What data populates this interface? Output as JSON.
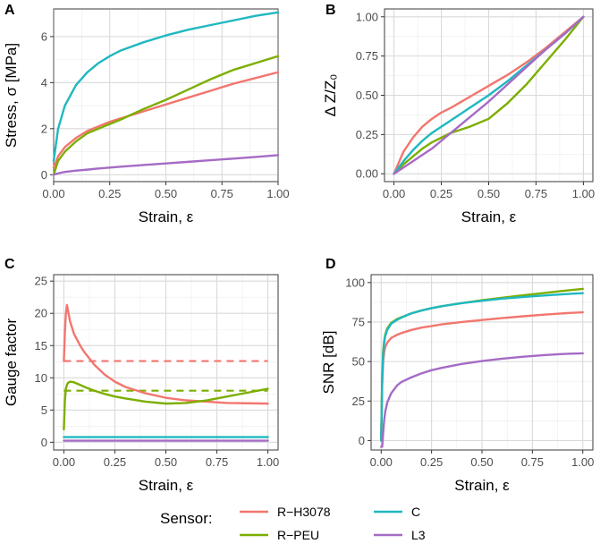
{
  "colors": {
    "R-H3078": "#F2766E",
    "R-PEU": "#7CAE00",
    "C": "#1FB8C0",
    "L3": "#A56BC5"
  },
  "legend": {
    "title": "Sensor:",
    "entries": [
      "R−H3078",
      "R−PEU",
      "C",
      "L3"
    ],
    "keys": [
      "R-H3078",
      "R-PEU",
      "C",
      "L3"
    ]
  },
  "chart_data": [
    {
      "panel": "A",
      "type": "line",
      "xlabel": "Strain, ε",
      "ylabel": "Stress, σ [MPa]",
      "xlim": [
        0,
        1
      ],
      "ylim": [
        -0.3,
        7.2
      ],
      "xticks": [
        0,
        0.25,
        0.5,
        0.75,
        1
      ],
      "xtick_labels": [
        "0.00",
        "0.25",
        "0.50",
        "0.75",
        "1.00"
      ],
      "yticks": [
        0,
        2,
        4,
        6
      ],
      "ytick_labels": [
        "0",
        "2",
        "4",
        "6"
      ],
      "x": [
        0,
        0.02,
        0.05,
        0.1,
        0.15,
        0.2,
        0.25,
        0.3,
        0.4,
        0.5,
        0.6,
        0.7,
        0.8,
        0.9,
        1.0
      ],
      "series": [
        {
          "name": "R-H3078",
          "values": [
            0.3,
            0.8,
            1.2,
            1.6,
            1.9,
            2.1,
            2.3,
            2.45,
            2.75,
            3.05,
            3.35,
            3.65,
            3.95,
            4.2,
            4.45
          ]
        },
        {
          "name": "R-PEU",
          "values": [
            0.0,
            0.6,
            1.0,
            1.45,
            1.8,
            2.0,
            2.2,
            2.4,
            2.85,
            3.25,
            3.7,
            4.15,
            4.55,
            4.85,
            5.15
          ]
        },
        {
          "name": "C",
          "values": [
            0.6,
            2.0,
            3.0,
            3.9,
            4.45,
            4.85,
            5.15,
            5.4,
            5.75,
            6.05,
            6.3,
            6.5,
            6.7,
            6.9,
            7.05
          ]
        },
        {
          "name": "L3",
          "values": [
            0.0,
            0.06,
            0.12,
            0.18,
            0.22,
            0.27,
            0.31,
            0.35,
            0.42,
            0.49,
            0.56,
            0.63,
            0.7,
            0.77,
            0.85
          ]
        }
      ]
    },
    {
      "panel": "B",
      "type": "line",
      "xlabel": "Strain, ε",
      "ylabel": "Δ Z/Z₀",
      "xlim": [
        -0.05,
        1.05
      ],
      "ylim": [
        -0.05,
        1.05
      ],
      "xticks": [
        0,
        0.25,
        0.5,
        0.75,
        1
      ],
      "xtick_labels": [
        "0.00",
        "0.25",
        "0.50",
        "0.75",
        "1.00"
      ],
      "yticks": [
        0,
        0.25,
        0.5,
        0.75,
        1
      ],
      "ytick_labels": [
        "0.00",
        "0.25",
        "0.50",
        "0.75",
        "1.00"
      ],
      "x": [
        0,
        0.05,
        0.1,
        0.15,
        0.2,
        0.25,
        0.3,
        0.4,
        0.5,
        0.6,
        0.7,
        0.8,
        0.9,
        1.0
      ],
      "series": [
        {
          "name": "R-H3078",
          "values": [
            0,
            0.14,
            0.23,
            0.3,
            0.35,
            0.39,
            0.42,
            0.49,
            0.56,
            0.63,
            0.71,
            0.8,
            0.9,
            1.0
          ]
        },
        {
          "name": "R-PEU",
          "values": [
            0,
            0.06,
            0.11,
            0.16,
            0.2,
            0.23,
            0.26,
            0.3,
            0.35,
            0.45,
            0.57,
            0.71,
            0.85,
            1.0
          ]
        },
        {
          "name": "C",
          "values": [
            0,
            0.08,
            0.15,
            0.21,
            0.26,
            0.3,
            0.34,
            0.42,
            0.5,
            0.59,
            0.69,
            0.79,
            0.89,
            1.0
          ]
        },
        {
          "name": "L3",
          "values": [
            0,
            0.04,
            0.08,
            0.12,
            0.16,
            0.21,
            0.26,
            0.36,
            0.46,
            0.57,
            0.68,
            0.79,
            0.89,
            1.0
          ]
        }
      ]
    },
    {
      "panel": "C",
      "type": "line",
      "xlabel": "Strain, ε",
      "ylabel": "Gauge factor",
      "xlim": [
        -0.05,
        1.05
      ],
      "ylim": [
        -1.2,
        26
      ],
      "xticks": [
        0,
        0.25,
        0.5,
        0.75,
        1
      ],
      "xtick_labels": [
        "0.00",
        "0.25",
        "0.50",
        "0.75",
        "1.00"
      ],
      "yticks": [
        0,
        5,
        10,
        15,
        20,
        25
      ],
      "ytick_labels": [
        "0",
        "5",
        "10",
        "15",
        "20",
        "25"
      ],
      "x": [
        0,
        0.005,
        0.01,
        0.015,
        0.02,
        0.03,
        0.05,
        0.08,
        0.1,
        0.15,
        0.2,
        0.25,
        0.3,
        0.4,
        0.5,
        0.6,
        0.7,
        0.8,
        0.9,
        1.0
      ],
      "series": [
        {
          "name": "R-H3078",
          "values": [
            12.6,
            17.0,
            20.0,
            21.3,
            20.5,
            18.8,
            16.8,
            15.0,
            14.0,
            12.0,
            10.5,
            9.4,
            8.6,
            7.6,
            6.9,
            6.5,
            6.3,
            6.1,
            6.05,
            6.0
          ]
        },
        {
          "name": "R-PEU",
          "values": [
            2.0,
            6.5,
            8.3,
            8.9,
            9.2,
            9.4,
            9.3,
            8.9,
            8.6,
            8.0,
            7.5,
            7.1,
            6.8,
            6.3,
            6.0,
            6.1,
            6.5,
            7.1,
            7.7,
            8.3
          ]
        },
        {
          "name": "C",
          "values": [
            0.8,
            0.8,
            0.8,
            0.8,
            0.8,
            0.8,
            0.8,
            0.8,
            0.8,
            0.8,
            0.8,
            0.8,
            0.8,
            0.8,
            0.8,
            0.8,
            0.8,
            0.8,
            0.8,
            0.8
          ]
        },
        {
          "name": "L3",
          "values": [
            0.25,
            0.25,
            0.25,
            0.25,
            0.25,
            0.25,
            0.25,
            0.25,
            0.25,
            0.25,
            0.25,
            0.25,
            0.25,
            0.25,
            0.25,
            0.25,
            0.25,
            0.25,
            0.25,
            0.25
          ]
        }
      ],
      "reference_lines": [
        {
          "name": "R-H3078",
          "style": "dashed",
          "value": 12.6
        },
        {
          "name": "R-PEU",
          "style": "dashed",
          "value": 8.0
        }
      ]
    },
    {
      "panel": "D",
      "type": "line",
      "xlabel": "Strain, ε",
      "ylabel": "SNR [dB]",
      "xlim": [
        -0.05,
        1.05
      ],
      "ylim": [
        -6,
        105
      ],
      "xticks": [
        0,
        0.25,
        0.5,
        0.75,
        1
      ],
      "xtick_labels": [
        "0.00",
        "0.25",
        "0.50",
        "0.75",
        "1.00"
      ],
      "yticks": [
        0,
        25,
        50,
        75,
        100
      ],
      "ytick_labels": [
        "0",
        "25",
        "50",
        "75",
        "100"
      ],
      "x": [
        0.0,
        0.005,
        0.01,
        0.015,
        0.02,
        0.03,
        0.05,
        0.08,
        0.1,
        0.15,
        0.2,
        0.25,
        0.3,
        0.4,
        0.5,
        0.6,
        0.7,
        0.8,
        0.9,
        1.0
      ],
      "series": [
        {
          "name": "R-H3078",
          "values": [
            0,
            35,
            50,
            56,
            59,
            62,
            65,
            67,
            68,
            70,
            71.5,
            72.5,
            73.5,
            75,
            76.3,
            77.5,
            78.6,
            79.6,
            80.5,
            81.2
          ]
        },
        {
          "name": "R-PEU",
          "values": [
            0,
            40,
            57,
            63,
            67,
            71,
            74.5,
            77,
            78,
            80.5,
            82.3,
            83.8,
            85,
            87,
            88.8,
            90.4,
            91.9,
            93.3,
            94.7,
            96.0
          ]
        },
        {
          "name": "C",
          "values": [
            0,
            38,
            55,
            62,
            66,
            70,
            74,
            76.5,
            77.8,
            80.5,
            82.3,
            83.8,
            85,
            87,
            88.5,
            89.8,
            90.8,
            91.7,
            92.6,
            93.3
          ]
        },
        {
          "name": "L3",
          "values": [
            -4,
            -4,
            5,
            13,
            18,
            24,
            30,
            35,
            37,
            40,
            42.5,
            44.5,
            46,
            48.5,
            50.3,
            51.8,
            53,
            54,
            54.8,
            55.2
          ]
        }
      ]
    }
  ]
}
